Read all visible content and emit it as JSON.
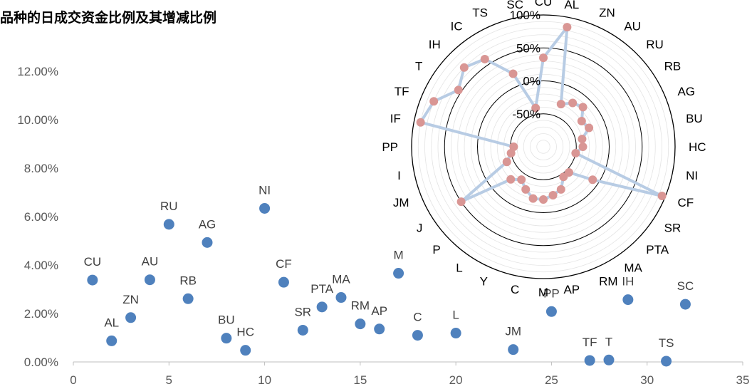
{
  "title": "品种的日成交资金比例及其增减比例",
  "chart_data": [
    {
      "type": "scatter",
      "title": "",
      "xlabel": "",
      "ylabel": "",
      "xlim": [
        0,
        35
      ],
      "ylim": [
        0,
        0.12
      ],
      "x_ticks": [
        "0",
        "5",
        "10",
        "15",
        "20",
        "25",
        "30",
        "35"
      ],
      "y_ticks": [
        "0.00%",
        "2.00%",
        "4.00%",
        "6.00%",
        "8.00%",
        "10.00%",
        "12.00%"
      ],
      "grid": false,
      "color": "#4f81bd",
      "points": [
        {
          "label": "CU",
          "x": 1,
          "y": 0.0338
        },
        {
          "label": "AL",
          "x": 2,
          "y": 0.0087
        },
        {
          "label": "ZN",
          "x": 3,
          "y": 0.0183
        },
        {
          "label": "AU",
          "x": 4,
          "y": 0.0339
        },
        {
          "label": "RU",
          "x": 5,
          "y": 0.0568
        },
        {
          "label": "RB",
          "x": 6,
          "y": 0.0261
        },
        {
          "label": "AG",
          "x": 7,
          "y": 0.0493
        },
        {
          "label": "BU",
          "x": 8,
          "y": 0.0098
        },
        {
          "label": "HC",
          "x": 9,
          "y": 0.0048
        },
        {
          "label": "NI",
          "x": 10,
          "y": 0.0634
        },
        {
          "label": "CF",
          "x": 11,
          "y": 0.0329
        },
        {
          "label": "SR",
          "x": 12,
          "y": 0.0131
        },
        {
          "label": "PTA",
          "x": 13,
          "y": 0.0227
        },
        {
          "label": "MA",
          "x": 14,
          "y": 0.0266
        },
        {
          "label": "RM",
          "x": 15,
          "y": 0.0157
        },
        {
          "label": "AP",
          "x": 16,
          "y": 0.0136
        },
        {
          "label": "M",
          "x": 17,
          "y": 0.0366
        },
        {
          "label": "C",
          "x": 18,
          "y": 0.011
        },
        {
          "label": "L",
          "x": 20,
          "y": 0.0119
        },
        {
          "label": "JM",
          "x": 23,
          "y": 0.0051
        },
        {
          "label": "PP",
          "x": 25,
          "y": 0.0208
        },
        {
          "label": "TF",
          "x": 27,
          "y": 0.0006
        },
        {
          "label": "T",
          "x": 28,
          "y": 0.0008
        },
        {
          "label": "IH",
          "x": 29,
          "y": 0.0257
        },
        {
          "label": "TS",
          "x": 31,
          "y": 0.0003
        },
        {
          "label": "SC",
          "x": 32,
          "y": 0.0238
        }
      ]
    },
    {
      "type": "radar",
      "title": "",
      "rlim": [
        -1.0,
        1.0
      ],
      "ring_labels": [
        "100%",
        "50%",
        "0%",
        "-50%"
      ],
      "categories": [
        "CU",
        "AL",
        "ZN",
        "AU",
        "RU",
        "RB",
        "AG",
        "BU",
        "HC",
        "NI",
        "CF",
        "SR",
        "PTA",
        "MA",
        "RM",
        "AP",
        "M",
        "C",
        "Y",
        "L",
        "P",
        "J",
        "JM",
        "I",
        "PP",
        "IF",
        "TF",
        "T",
        "IH",
        "IC",
        "TS",
        "SC"
      ],
      "values": [
        0.35,
        0.85,
        -0.3,
        -0.2,
        -0.15,
        -0.3,
        -0.25,
        -0.4,
        -0.4,
        -0.5,
        0.95,
        -0.1,
        -0.45,
        -0.45,
        -0.3,
        -0.25,
        -0.2,
        -0.2,
        -0.3,
        -0.4,
        -0.3,
        0.5,
        -0.4,
        -0.5,
        -0.55,
        0.9,
        0.8,
        0.55,
        0.7,
        0.6,
        0.2,
        -0.4
      ],
      "line_color": "#b8cce4",
      "marker_color": "#d99694"
    }
  ]
}
